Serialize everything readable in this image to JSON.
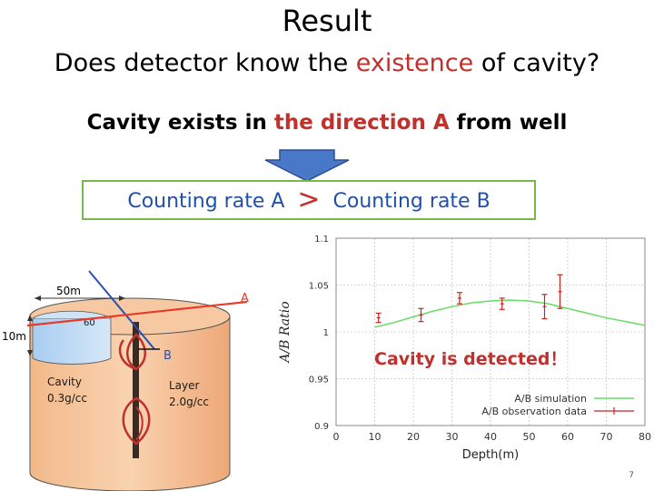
{
  "slide": {
    "title": "Result",
    "question": {
      "before": "Does detector know the ",
      "highlight": "existence",
      "after": " of cavity?"
    },
    "statement": {
      "before": "Cavity exists in ",
      "highlight": "the direction A",
      "after": " from well"
    },
    "comparison": {
      "left": "Counting rate A",
      "operator": ">",
      "right": "Counting rate B"
    },
    "detected_label": "Cavity is detected！",
    "page_number": "7",
    "colors": {
      "accent_red": "#c0302c",
      "text_blue": "#2050a8",
      "box_green": "#7ab648",
      "arrow_blue": "#4a78c8"
    }
  },
  "diagram": {
    "width_label": "50m",
    "depth_label": "10m",
    "cavity_depth_label": "60",
    "direction_a": "A",
    "direction_b": "B",
    "cavity_label_line1": "Cavity",
    "cavity_label_line2": "0.3g/cc",
    "layer_label_line1": "Layer",
    "layer_label_line2": "2.0g/cc"
  },
  "chart_data": {
    "type": "scatter",
    "xlabel": "Depth(m)",
    "ylabel": "A/B Ratio",
    "xlim": [
      0,
      80
    ],
    "ylim": [
      0.9,
      1.1
    ],
    "xticks": [
      0,
      10,
      20,
      30,
      40,
      50,
      60,
      70,
      80
    ],
    "yticks": [
      0.9,
      0.95,
      1,
      1.05,
      1.1
    ],
    "ytick_labels": [
      "0.9",
      "0.95",
      "1",
      "1.05",
      "1.1"
    ],
    "grid": true,
    "legend_position": "bottom-right",
    "series": [
      {
        "name": "A/B simulation",
        "kind": "line",
        "color": "#66dd66",
        "x": [
          10,
          15,
          20,
          25,
          30,
          35,
          40,
          45,
          50,
          55,
          60,
          65,
          70,
          75,
          80
        ],
        "y": [
          1.005,
          1.01,
          1.016,
          1.022,
          1.027,
          1.031,
          1.033,
          1.034,
          1.033,
          1.03,
          1.025,
          1.02,
          1.015,
          1.011,
          1.007
        ]
      },
      {
        "name": "A/B observation data",
        "kind": "errorbar",
        "color": "#cc2222",
        "x": [
          11,
          22,
          32,
          43,
          54,
          58
        ],
        "y": [
          1.015,
          1.018,
          1.036,
          1.03,
          1.027,
          1.043
        ],
        "err": [
          0.005,
          0.007,
          0.006,
          0.006,
          0.013,
          0.018
        ]
      }
    ]
  }
}
